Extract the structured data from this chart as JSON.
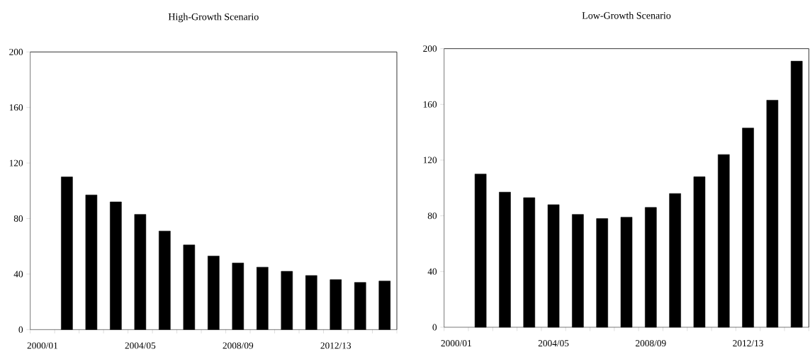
{
  "chart_data": [
    {
      "type": "bar",
      "title": "High-Growth Scenario",
      "categories": [
        "2000/01",
        null,
        null,
        null,
        "2004/05",
        null,
        null,
        null,
        "2008/09",
        null,
        null,
        null,
        "2012/13",
        null,
        null
      ],
      "values": [
        null,
        110,
        97,
        92,
        83,
        71,
        61,
        53,
        48,
        45,
        42,
        39,
        36,
        34,
        35
      ],
      "color": "#000000",
      "ylim": [
        0,
        200
      ],
      "yticks": [
        0,
        40,
        80,
        120,
        160,
        200
      ]
    },
    {
      "type": "bar",
      "title": "Low-Growth Scenario",
      "categories": [
        "2000/01",
        null,
        null,
        null,
        "2004/05",
        null,
        null,
        null,
        "2008/09",
        null,
        null,
        null,
        "2012/13",
        null,
        null
      ],
      "values": [
        null,
        110,
        97,
        93,
        88,
        81,
        78,
        79,
        86,
        96,
        108,
        124,
        143,
        163,
        191
      ],
      "color": "#000000",
      "ylim": [
        0,
        200
      ],
      "yticks": [
        0,
        40,
        80,
        120,
        160,
        200
      ]
    }
  ]
}
